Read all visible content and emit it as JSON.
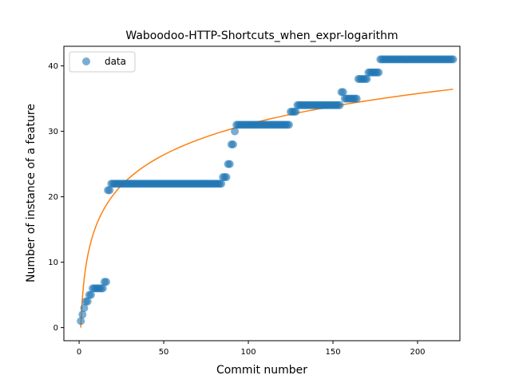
{
  "chart_data": {
    "type": "scatter",
    "title": "Waboodoo-HTTP-Shortcuts_when_expr-logarithm",
    "xlabel": "Commit number",
    "ylabel": "Number of instance of a feature",
    "xlim": [
      -9,
      225
    ],
    "ylim": [
      -2,
      43
    ],
    "xticks": [
      0,
      50,
      100,
      150,
      200
    ],
    "yticks": [
      0,
      10,
      20,
      30,
      40
    ],
    "grid": false,
    "legend": {
      "placement": "upper-left",
      "entries": [
        "data"
      ]
    },
    "colors": {
      "data": "#1f77b4",
      "fit": "#ff7f0e"
    },
    "series": [
      {
        "name": "data",
        "kind": "scatter",
        "segments": [
          {
            "x_start": 1,
            "x_end": 1,
            "y": 1
          },
          {
            "x_start": 2,
            "x_end": 2,
            "y": 2
          },
          {
            "x_start": 3,
            "x_end": 3,
            "y": 3
          },
          {
            "x_start": 4,
            "x_end": 5,
            "y": 4
          },
          {
            "x_start": 6,
            "x_end": 7,
            "y": 5
          },
          {
            "x_start": 8,
            "x_end": 14,
            "y": 6
          },
          {
            "x_start": 15,
            "x_end": 16,
            "y": 7
          },
          {
            "x_start": 17,
            "x_end": 18,
            "y": 21
          },
          {
            "x_start": 19,
            "x_end": 84,
            "y": 22
          },
          {
            "x_start": 85,
            "x_end": 87,
            "y": 23
          },
          {
            "x_start": 88,
            "x_end": 89,
            "y": 25
          },
          {
            "x_start": 90,
            "x_end": 91,
            "y": 28
          },
          {
            "x_start": 92,
            "x_end": 92,
            "y": 30
          },
          {
            "x_start": 93,
            "x_end": 124,
            "y": 31
          },
          {
            "x_start": 125,
            "x_end": 128,
            "y": 33
          },
          {
            "x_start": 129,
            "x_end": 154,
            "y": 34
          },
          {
            "x_start": 155,
            "x_end": 156,
            "y": 36
          },
          {
            "x_start": 157,
            "x_end": 164,
            "y": 35
          },
          {
            "x_start": 165,
            "x_end": 170,
            "y": 38
          },
          {
            "x_start": 171,
            "x_end": 177,
            "y": 39
          },
          {
            "x_start": 178,
            "x_end": 221,
            "y": 41
          }
        ]
      },
      {
        "name": "",
        "kind": "line",
        "x_start": 1,
        "x_end": 221,
        "fit": {
          "a": 6.75,
          "b": 0.0
        }
      }
    ]
  }
}
